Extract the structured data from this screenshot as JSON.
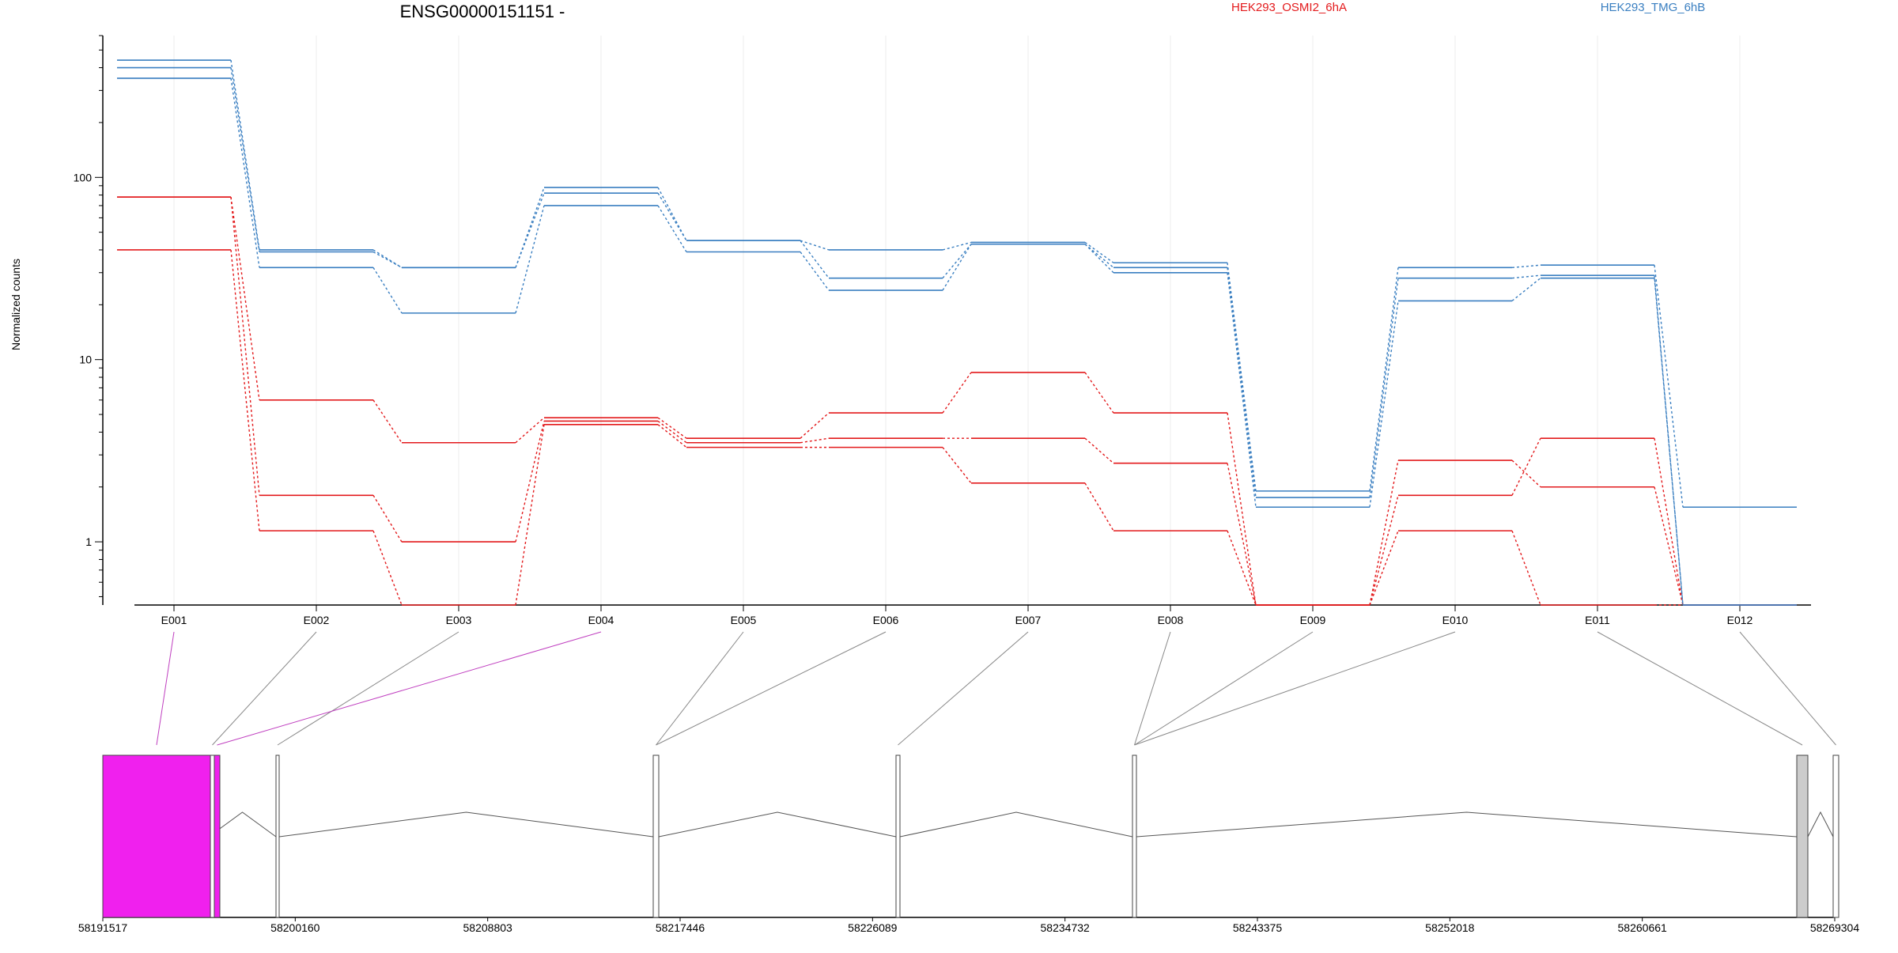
{
  "chart_data": {
    "type": "line",
    "title": "ENSG00000151151 -",
    "ylabel": "Normalized counts",
    "y_scale": "log",
    "ylim": [
      0.45,
      600
    ],
    "y_ticks": [
      1,
      10,
      100
    ],
    "y_tick_labels": [
      "1",
      "10",
      "100"
    ],
    "grid": "vertical, light",
    "legend": [
      {
        "name": "HEK293_OSMI2_6hA",
        "color": "#e31a1c"
      },
      {
        "name": "HEK293_TMG_6hB",
        "color": "#3a7fc1"
      }
    ],
    "legend_placement": "top",
    "categories": [
      "E001",
      "E002",
      "E003",
      "E004",
      "E005",
      "E006",
      "E007",
      "E008",
      "E009",
      "E010",
      "E011",
      "E012"
    ],
    "series": [
      {
        "color": "#e31a1c",
        "values": [
          78,
          6.0,
          3.5,
          4.8,
          3.7,
          5.1,
          8.5,
          5.1,
          0.45,
          1.8,
          3.7,
          0.45
        ]
      },
      {
        "color": "#e31a1c",
        "values": [
          78,
          1.8,
          1.0,
          4.6,
          3.5,
          3.7,
          3.7,
          2.7,
          0.45,
          2.8,
          2.0,
          0.45
        ]
      },
      {
        "color": "#e31a1c",
        "values": [
          40,
          1.15,
          0.45,
          4.4,
          3.3,
          3.3,
          2.1,
          1.15,
          0.45,
          1.15,
          0.45,
          0.45
        ]
      },
      {
        "color": "#3a7fc1",
        "values": [
          440,
          40,
          32,
          88,
          45,
          40,
          44,
          34,
          1.9,
          32,
          33,
          1.55
        ]
      },
      {
        "color": "#3a7fc1",
        "values": [
          400,
          39,
          32,
          82,
          45,
          28,
          43,
          32,
          1.75,
          28,
          29,
          0.45
        ]
      },
      {
        "color": "#3a7fc1",
        "values": [
          350,
          32,
          18,
          70,
          39,
          24,
          43,
          30,
          1.55,
          21,
          28,
          0.45
        ]
      }
    ],
    "gene_model": {
      "coordinate_tick_labels": [
        "58191517",
        "58200160",
        "58208803",
        "58217446",
        "58226089",
        "58234732",
        "58243375",
        "58252018",
        "58260661",
        "58269304"
      ],
      "exon_colors": [
        "#f020ee",
        "#ffffff",
        "#ffffff",
        "#f020ee",
        "#ffffff",
        "#ffffff",
        "#ffffff",
        "#ffffff",
        "#ffffff",
        "#ffffff",
        "#cccccc",
        "#ffffff"
      ]
    }
  }
}
